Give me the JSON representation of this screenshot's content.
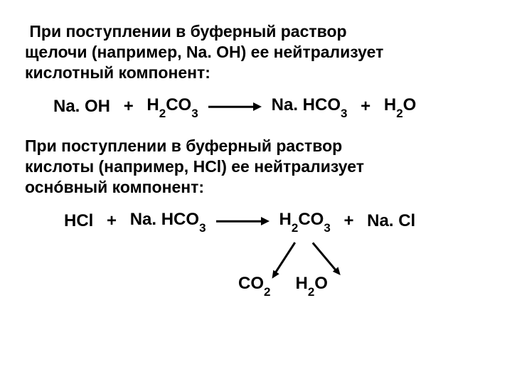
{
  "paragraph1": {
    "line1": " При поступлении в буферный раствор",
    "line2": "щелочи (например, Na. OH) ее нейтрализует",
    "line3": "кислотный компонент:"
  },
  "equation1": {
    "reactant1_a": "Na. OH",
    "plus1": "+",
    "reactant2_a": "H",
    "reactant2_sub1": "2",
    "reactant2_b": "CO",
    "reactant2_sub2": "3",
    "product1_a": "Na. HCO",
    "product1_sub": "3",
    "plus2": "+",
    "product2_a": "H",
    "product2_sub": "2",
    "product2_b": "O"
  },
  "paragraph2": {
    "line1": "При поступлении в буферный раствор",
    "line2": "кислоты (например, HCl) ее нейтрализует",
    "line3": "оснóвный компонент:"
  },
  "equation2": {
    "reactant1": "HCl",
    "plus1": "+",
    "reactant2_a": "Na. HCO",
    "reactant2_sub": "3",
    "product1_a": "H",
    "product1_sub1": "2",
    "product1_b": "CO",
    "product1_sub2": "3",
    "plus2": "+",
    "product2": "Na. Cl"
  },
  "decompose": {
    "prod1_a": "CO",
    "prod1_sub": "2",
    "prod2_a": "H",
    "prod2_sub": "2",
    "prod2_b": "O"
  },
  "colors": {
    "text": "#000000",
    "background": "#ffffff"
  },
  "fonts": {
    "body_size": 23,
    "equation_size": 24,
    "sub_size": 17,
    "weight": "bold",
    "family": "Arial"
  }
}
